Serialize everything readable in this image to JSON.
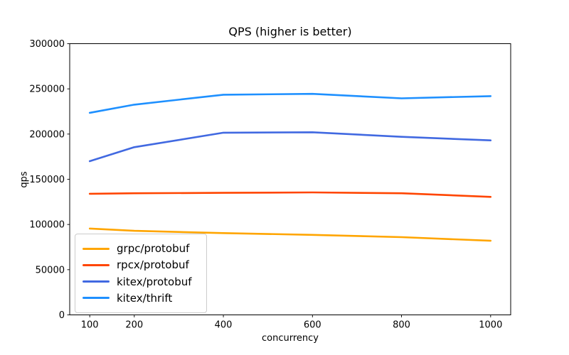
{
  "figure": {
    "background": "#ffffff",
    "text_color": "#000000",
    "spine_color": "#000000",
    "legend_border_color": "#cccccc"
  },
  "chart_data": {
    "type": "line",
    "title": "QPS (higher is better)",
    "xlabel": "concurrency",
    "ylabel": "qps",
    "grid": false,
    "legend_position": "lower-left",
    "x": [
      100,
      200,
      400,
      600,
      800,
      1000
    ],
    "xticks": [
      100,
      200,
      400,
      600,
      800,
      1000
    ],
    "yticks": [
      0,
      50000,
      100000,
      150000,
      200000,
      250000,
      300000
    ],
    "xlim": [
      55,
      1045
    ],
    "ylim": [
      0,
      300000
    ],
    "series": [
      {
        "name": "grpc/protobuf",
        "color": "#FFA500",
        "values": [
          95500,
          93000,
          90500,
          88500,
          86000,
          82000
        ]
      },
      {
        "name": "rpcx/protobuf",
        "color": "#FF4500",
        "values": [
          134000,
          134500,
          135000,
          135500,
          134500,
          130500
        ]
      },
      {
        "name": "kitex/protobuf",
        "color": "#4169E1",
        "values": [
          170000,
          185500,
          201500,
          202000,
          197000,
          193000
        ]
      },
      {
        "name": "kitex/thrift",
        "color": "#1E90FF",
        "values": [
          223500,
          232500,
          243500,
          244500,
          239500,
          242000
        ]
      }
    ]
  }
}
